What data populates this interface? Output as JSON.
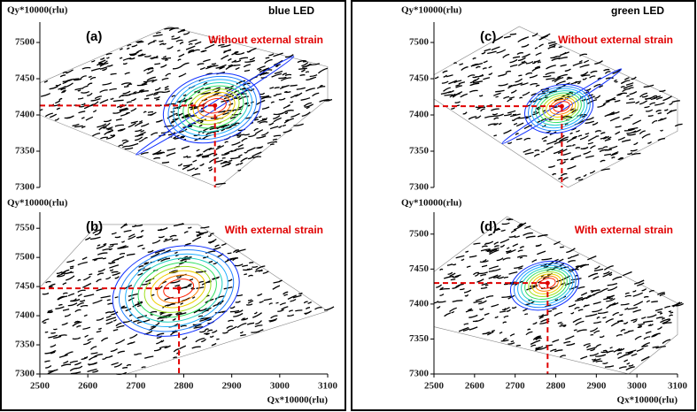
{
  "chart_data": [
    {
      "type": "contour",
      "header": "blue LED",
      "panel_label": "(a)",
      "annotation": "Without external strain",
      "ylabel": "Qy*10000(rlu)",
      "xlim": [
        2500,
        3100
      ],
      "ylim": [
        7300,
        7522
      ],
      "yticks": [
        7300,
        7350,
        7400,
        7450,
        7500
      ],
      "peak": {
        "x": 2865,
        "y": 7413
      }
    },
    {
      "type": "contour",
      "panel_label": "(b)",
      "annotation": "With external strain",
      "ylabel": "Qy*10000(rlu)",
      "xlabel": "Qx*10000(rlu)",
      "xlim": [
        2500,
        3100
      ],
      "ylim": [
        7300,
        7570
      ],
      "yticks": [
        7300,
        7350,
        7400,
        7450,
        7500,
        7550
      ],
      "xticks": [
        2500,
        2600,
        2700,
        2800,
        2900,
        3000,
        3100
      ],
      "peak": {
        "x": 2790,
        "y": 7447
      }
    },
    {
      "type": "contour",
      "header": "green LED",
      "panel_label": "(c)",
      "annotation": "Without external strain",
      "ylabel": "Qy*10000(rlu)",
      "xlim": [
        2500,
        3100
      ],
      "ylim": [
        7300,
        7522
      ],
      "yticks": [
        7300,
        7350,
        7400,
        7450,
        7500
      ],
      "peak": {
        "x": 2815,
        "y": 7412
      }
    },
    {
      "type": "contour",
      "panel_label": "(d)",
      "annotation": "With external strain",
      "ylabel": "Qy*10000(rlu)",
      "xlabel": "Qx*10000(rlu)",
      "xlim": [
        2500,
        3100
      ],
      "ylim": [
        7300,
        7525
      ],
      "yticks": [
        7300,
        7350,
        7400,
        7450,
        7500
      ],
      "xticks": [
        2500,
        2600,
        2700,
        2800,
        2900,
        3000,
        3100
      ],
      "peak": {
        "x": 2780,
        "y": 7430
      }
    }
  ]
}
